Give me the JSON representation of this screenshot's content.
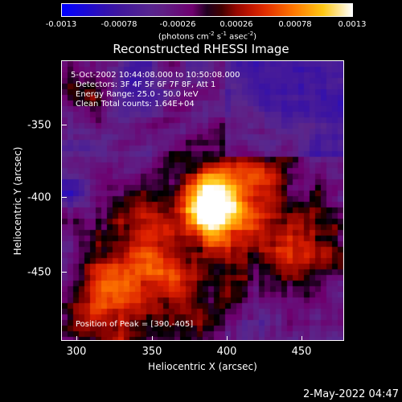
{
  "colorbar": {
    "ticks": [
      "-0.0013",
      "-0.00078",
      "-0.00026",
      "0.00026",
      "0.00078",
      "0.0013"
    ],
    "unit_main": "(photons cm",
    "unit_sup1": "-2",
    "unit_mid1": " s",
    "unit_sup2": "-1",
    "unit_mid2": " asec",
    "unit_sup3": "-2",
    "unit_end": ")"
  },
  "title": "Reconstructed RHESSI Image",
  "info": {
    "line1": "5-Oct-2002 10:44:08.000 to 10:50:08.000",
    "line2": "Detectors: 3F 4F 5F 6F 7F 8F, Att 1",
    "line3": "Energy Range: 25.0 - 50.0 keV",
    "line4": "Clean    Total counts: 1.64E+04",
    "peak": "Position of Peak = [390,-405]"
  },
  "axes": {
    "x_label": "Heliocentric X (arcsec)",
    "y_label": "Heliocentric Y (arcsec)",
    "x_ticks": [
      "300",
      "350",
      "400",
      "450"
    ],
    "y_ticks": [
      "-350",
      "-400",
      "-450"
    ]
  },
  "timestamp": "2-May-2022 04:47",
  "colors": {
    "cmap_low": "#0000ff",
    "cmap_mid": "#9400d3",
    "cmap_high": "#ffffff",
    "frame": "#ffffff"
  }
}
